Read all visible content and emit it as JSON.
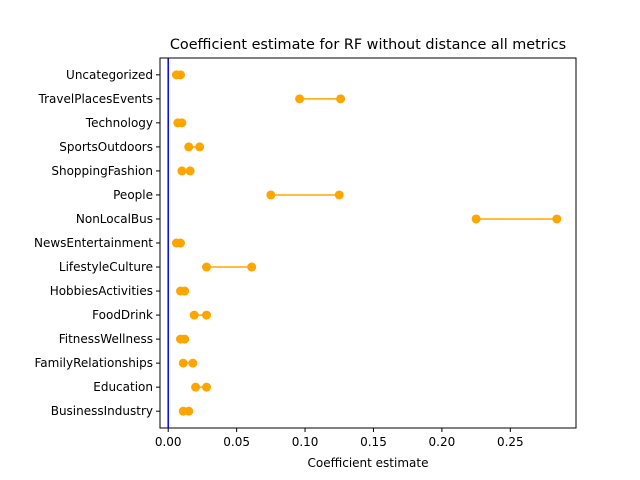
{
  "chart_data": {
    "type": "dumbbell",
    "title": "Coefficient estimate for RF without distance all metrics",
    "xlabel": "Coefficient estimate",
    "ylabel": "",
    "xlim": [
      -0.006,
      0.298
    ],
    "xticks": [
      0.0,
      0.05,
      0.1,
      0.15,
      0.2,
      0.25
    ],
    "xtick_labels": [
      "0.00",
      "0.05",
      "0.10",
      "0.15",
      "0.20",
      "0.25"
    ],
    "reference_line_x": 0.0,
    "reference_line_color": "#0000ff",
    "series_color": "#ffa500",
    "grid": false,
    "categories": [
      "Uncategorized",
      "TravelPlacesEvents",
      "Technology",
      "SportsOutdoors",
      "ShoppingFashion",
      "People",
      "NonLocalBus",
      "NewsEntertainment",
      "LifestyleCulture",
      "HobbiesActivities",
      "FoodDrink",
      "FitnessWellness",
      "FamilyRelationships",
      "Education",
      "BusinessIndustry"
    ],
    "low": [
      0.006,
      0.096,
      0.007,
      0.015,
      0.01,
      0.075,
      0.225,
      0.006,
      0.028,
      0.009,
      0.019,
      0.009,
      0.011,
      0.02,
      0.011
    ],
    "high": [
      0.009,
      0.126,
      0.01,
      0.023,
      0.016,
      0.125,
      0.284,
      0.009,
      0.061,
      0.012,
      0.028,
      0.012,
      0.018,
      0.028,
      0.015
    ]
  }
}
